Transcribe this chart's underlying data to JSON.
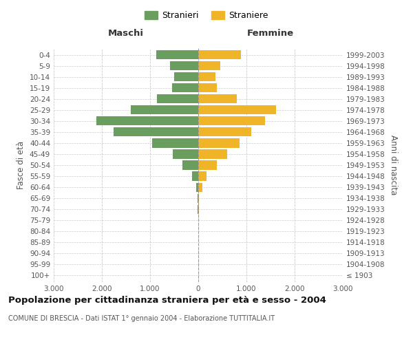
{
  "age_groups": [
    "100+",
    "95-99",
    "90-94",
    "85-89",
    "80-84",
    "75-79",
    "70-74",
    "65-69",
    "60-64",
    "55-59",
    "50-54",
    "45-49",
    "40-44",
    "35-39",
    "30-34",
    "25-29",
    "20-24",
    "15-19",
    "10-14",
    "5-9",
    "0-4"
  ],
  "birth_years": [
    "≤ 1903",
    "1904-1908",
    "1909-1913",
    "1914-1918",
    "1919-1923",
    "1924-1928",
    "1929-1933",
    "1934-1938",
    "1939-1943",
    "1944-1948",
    "1949-1953",
    "1954-1958",
    "1959-1963",
    "1964-1968",
    "1969-1973",
    "1974-1978",
    "1979-1983",
    "1984-1988",
    "1989-1993",
    "1994-1998",
    "1999-2003"
  ],
  "maschi": [
    0,
    0,
    0,
    0,
    0,
    0,
    10,
    15,
    50,
    130,
    330,
    530,
    960,
    1760,
    2120,
    1400,
    860,
    550,
    500,
    580,
    870
  ],
  "femmine": [
    0,
    0,
    0,
    0,
    0,
    0,
    10,
    20,
    80,
    170,
    380,
    600,
    860,
    1100,
    1380,
    1620,
    800,
    380,
    360,
    460,
    880
  ],
  "maschi_color": "#6a9e5e",
  "femmine_color": "#f0b429",
  "grid_color": "#cccccc",
  "center_line_color": "#999999",
  "title": "Popolazione per cittadinanza straniera per età e sesso - 2004",
  "subtitle": "COMUNE DI BRESCIA - Dati ISTAT 1° gennaio 2004 - Elaborazione TUTTITALIA.IT",
  "xlabel_left": "Maschi",
  "xlabel_right": "Femmine",
  "ylabel_left": "Fasce di età",
  "ylabel_right": "Anni di nascita",
  "legend_maschi": "Stranieri",
  "legend_femmine": "Straniere",
  "xlim": 3000,
  "xticks": [
    -3000,
    -2000,
    -1000,
    0,
    1000,
    2000,
    3000
  ],
  "xtick_labels": [
    "3.000",
    "2.000",
    "1.000",
    "0",
    "1.000",
    "2.000",
    "3.000"
  ],
  "background_color": "#ffffff",
  "bar_height": 0.82,
  "title_fontsize": 9.5,
  "subtitle_fontsize": 7.0,
  "tick_fontsize": 7.5,
  "header_fontsize": 9.5,
  "ylabel_fontsize": 8.5,
  "legend_fontsize": 9.0
}
